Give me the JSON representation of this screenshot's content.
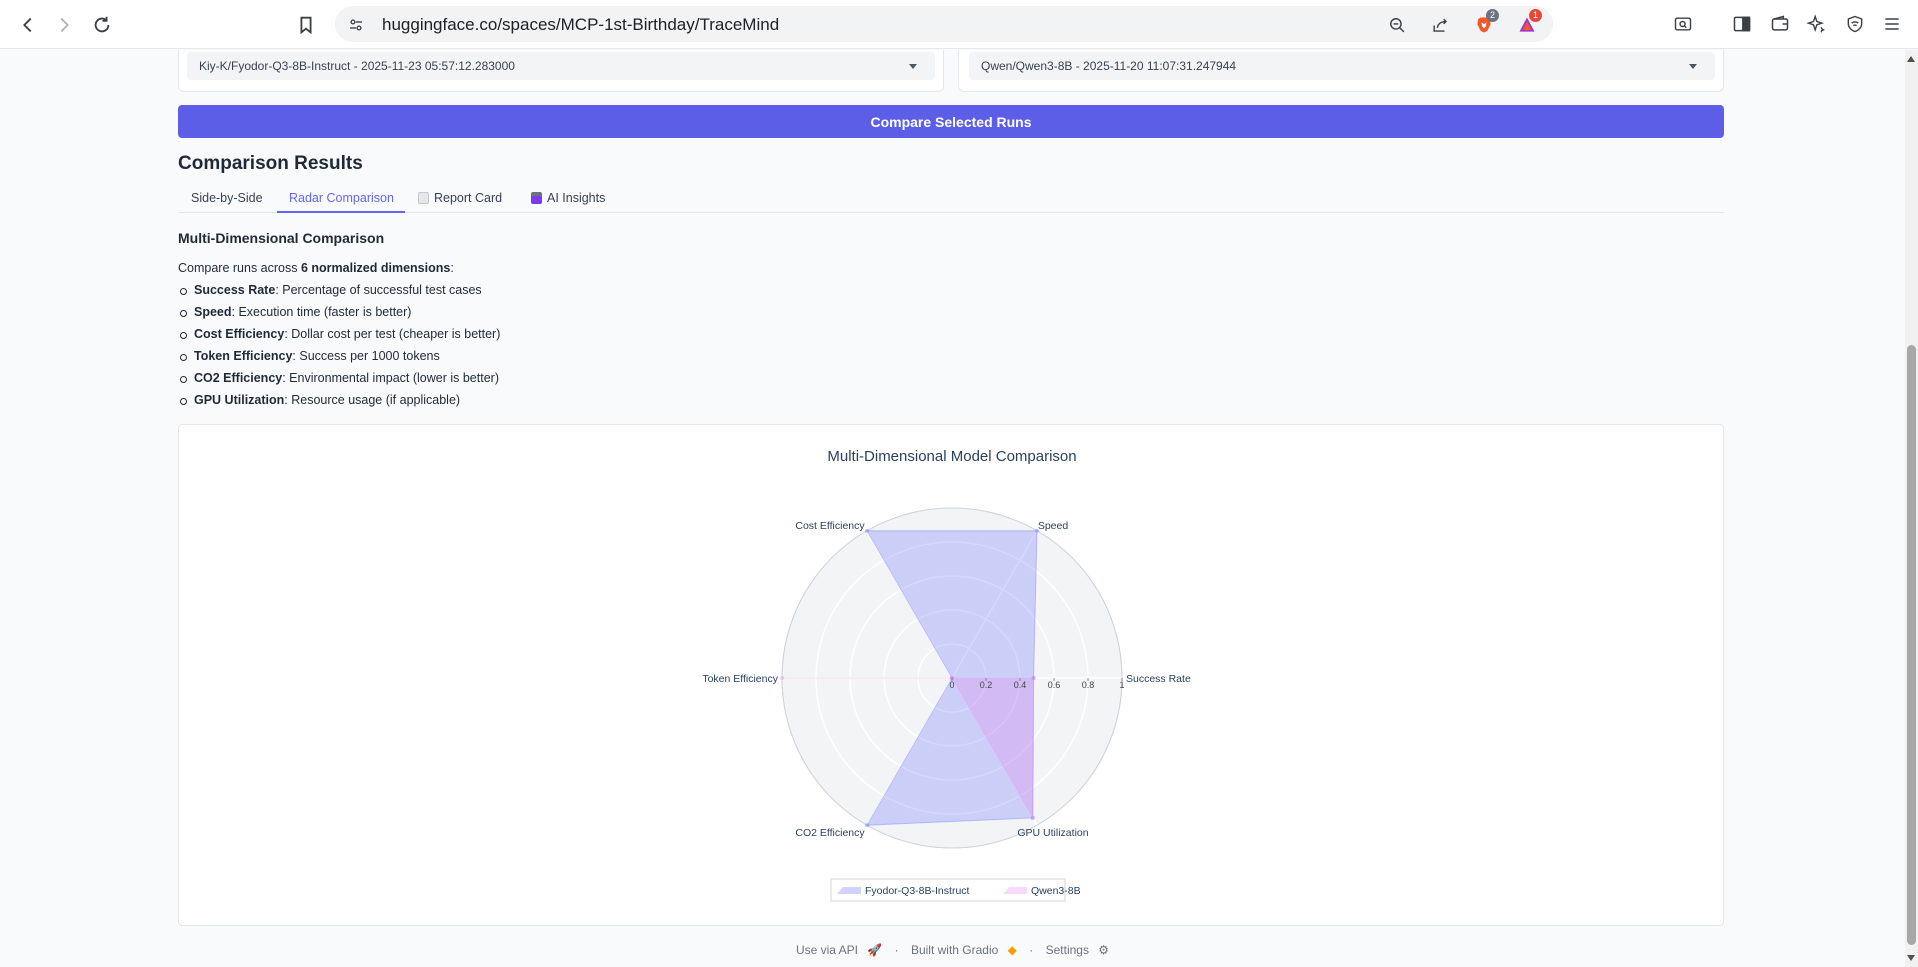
{
  "browser": {
    "url": "huggingface.co/spaces/MCP-1st-Birthday/TraceMind",
    "brave_badge": "2",
    "alert_badge": "1"
  },
  "run_selectors": {
    "run_a": "Kiy-K/Fyodor-Q3-8B-Instruct - 2025-11-23 05:57:12.283000",
    "run_b": "Qwen/Qwen3-8B - 2025-11-20 11:07:31.247944"
  },
  "compare_button": "Compare Selected Runs",
  "section_title": "Comparison Results",
  "tabs": [
    {
      "label": "Side-by-Side",
      "active": false,
      "icon": ""
    },
    {
      "label": "Radar Comparison",
      "active": true,
      "icon": ""
    },
    {
      "label": "Report Card",
      "active": false,
      "icon": "report-icon"
    },
    {
      "label": "AI Insights",
      "active": false,
      "icon": "robot-icon"
    }
  ],
  "panel": {
    "title": "Multi-Dimensional Comparison",
    "intro_prefix": "Compare runs across ",
    "intro_bold": "6 normalized dimensions",
    "intro_suffix": ":",
    "dimensions": [
      {
        "name": "Success Rate",
        "desc": ": Percentage of successful test cases"
      },
      {
        "name": "Speed",
        "desc": ": Execution time (faster is better)"
      },
      {
        "name": "Cost Efficiency",
        "desc": ": Dollar cost per test (cheaper is better)"
      },
      {
        "name": "Token Efficiency",
        "desc": ": Success per 1000 tokens"
      },
      {
        "name": "CO2 Efficiency",
        "desc": ": Environmental impact (lower is better)"
      },
      {
        "name": "GPU Utilization",
        "desc": ": Resource usage (if applicable)"
      }
    ]
  },
  "chart_data": {
    "type": "radar",
    "title": "Multi-Dimensional Model Comparison",
    "axes": [
      "Success Rate",
      "Speed",
      "Cost Efficiency",
      "Token Efficiency",
      "CO2 Efficiency",
      "GPU Utilization"
    ],
    "radial_range": [
      0,
      1
    ],
    "radial_ticks": [
      "0",
      "0.2",
      "0.4",
      "0.6",
      "0.8",
      "1"
    ],
    "legend_position": "bottom",
    "series": [
      {
        "name": "Fyodor-Q3-8B-Instruct",
        "values": [
          0.48,
          1.0,
          1.0,
          0.0,
          1.0,
          0.95
        ],
        "color": "#636efa"
      },
      {
        "name": "Qwen3-8B",
        "values": [
          0.48,
          0.0,
          0.0,
          1.0,
          0.0,
          0.95
        ],
        "color": "#e586f2"
      }
    ]
  },
  "footer": {
    "api": "Use via API",
    "built": "Built with Gradio",
    "settings": "Settings",
    "sep": "·"
  }
}
